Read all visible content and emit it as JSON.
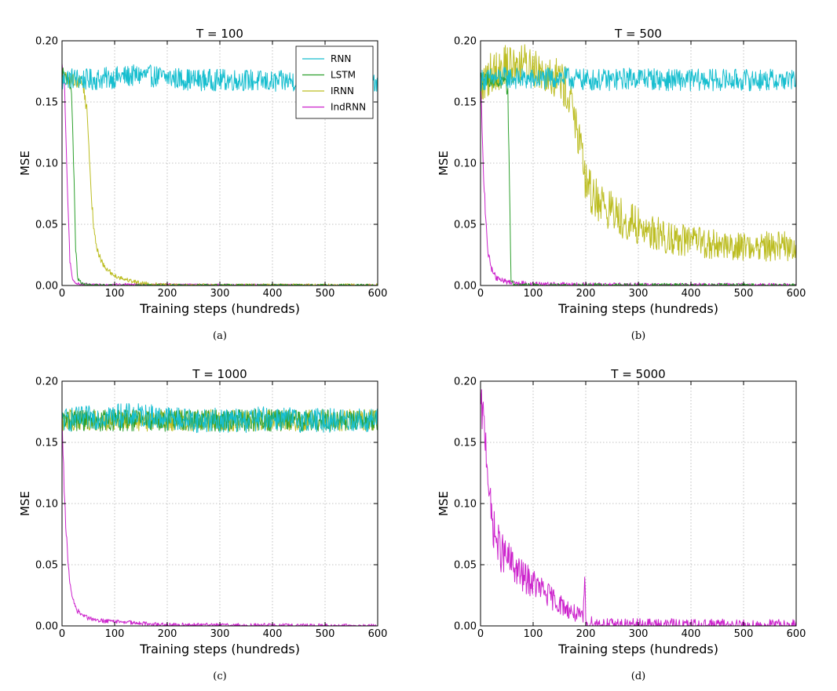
{
  "figure": {
    "colors": {
      "RNN": "#17becf",
      "LSTM": "#2ca02c",
      "IRNN": "#bcbd22",
      "IndRNN": "#cc22cc"
    },
    "legend_labels": [
      "RNN",
      "LSTM",
      "IRNN",
      "IndRNN"
    ]
  },
  "chart_data": [
    {
      "type": "line",
      "title": "T = 100",
      "caption": "(a)",
      "xlabel": "Training steps (hundreds)",
      "ylabel": "MSE",
      "xlim": [
        0,
        600
      ],
      "ylim": [
        0,
        0.2
      ],
      "xticks": [
        "0",
        "100",
        "200",
        "300",
        "400",
        "500",
        "600"
      ],
      "yticks": [
        "0.00",
        "0.05",
        "0.10",
        "0.15",
        "0.20"
      ],
      "grid": true,
      "legend": "top-right",
      "series": [
        {
          "name": "RNN",
          "x": [
            0,
            5,
            50,
            100,
            150,
            200,
            250,
            300,
            350,
            400,
            450,
            500,
            550,
            600
          ],
          "y": [
            0.165,
            0.17,
            0.168,
            0.17,
            0.172,
            0.17,
            0.168,
            0.168,
            0.168,
            0.166,
            0.168,
            0.168,
            0.168,
            0.167
          ],
          "noise": 0.009
        },
        {
          "name": "LSTM",
          "x": [
            0,
            10,
            18,
            22,
            26,
            30,
            40,
            60,
            600
          ],
          "y": [
            0.175,
            0.17,
            0.16,
            0.1,
            0.03,
            0.005,
            0.001,
            0.0,
            0.0
          ],
          "noise": 0.004
        },
        {
          "name": "IRNN",
          "x": [
            0,
            20,
            40,
            48,
            55,
            60,
            70,
            80,
            100,
            120,
            150,
            200,
            600
          ],
          "y": [
            0.17,
            0.168,
            0.165,
            0.14,
            0.08,
            0.045,
            0.025,
            0.015,
            0.008,
            0.005,
            0.002,
            0.0,
            0.0
          ],
          "noise": 0.005
        },
        {
          "name": "IndRNN",
          "x": [
            0,
            5,
            10,
            15,
            20,
            25,
            40,
            600
          ],
          "y": [
            0.18,
            0.16,
            0.08,
            0.02,
            0.005,
            0.002,
            0.001,
            0.0
          ],
          "noise": 0.003
        }
      ]
    },
    {
      "type": "line",
      "title": "T = 500",
      "caption": "(b)",
      "xlabel": "Training steps (hundreds)",
      "ylabel": "MSE",
      "xlim": [
        0,
        600
      ],
      "ylim": [
        0,
        0.2
      ],
      "xticks": [
        "0",
        "100",
        "200",
        "300",
        "400",
        "500",
        "600"
      ],
      "yticks": [
        "0.00",
        "0.05",
        "0.10",
        "0.15",
        "0.20"
      ],
      "grid": true,
      "legend": "none",
      "series": [
        {
          "name": "RNN",
          "x": [
            0,
            50,
            100,
            150,
            200,
            250,
            300,
            350,
            400,
            450,
            500,
            550,
            600
          ],
          "y": [
            0.168,
            0.17,
            0.168,
            0.17,
            0.168,
            0.168,
            0.17,
            0.168,
            0.168,
            0.168,
            0.168,
            0.168,
            0.168
          ],
          "noise": 0.009
        },
        {
          "name": "LSTM",
          "x": [
            0,
            20,
            45,
            52,
            55,
            58,
            65,
            600
          ],
          "y": [
            0.17,
            0.168,
            0.165,
            0.16,
            0.08,
            0.005,
            0.0,
            0.0
          ],
          "noise": 0.006
        },
        {
          "name": "IRNN",
          "x": [
            0,
            20,
            50,
            100,
            150,
            175,
            185,
            195,
            200,
            210,
            250,
            300,
            350,
            400,
            450,
            500,
            550,
            600
          ],
          "y": [
            0.16,
            0.175,
            0.18,
            0.18,
            0.17,
            0.15,
            0.12,
            0.1,
            0.085,
            0.075,
            0.06,
            0.048,
            0.04,
            0.036,
            0.033,
            0.032,
            0.032,
            0.032
          ],
          "noise": 0.018
        },
        {
          "name": "IndRNN",
          "x": [
            0,
            5,
            10,
            15,
            20,
            30,
            50,
            100,
            200,
            600
          ],
          "y": [
            0.17,
            0.1,
            0.05,
            0.025,
            0.015,
            0.006,
            0.003,
            0.001,
            0.0005,
            0.0
          ],
          "noise": 0.006
        }
      ]
    },
    {
      "type": "line",
      "title": "T = 1000",
      "caption": "(c)",
      "xlabel": "Training steps (hundreds)",
      "ylabel": "MSE",
      "xlim": [
        0,
        600
      ],
      "ylim": [
        0,
        0.2
      ],
      "xticks": [
        "0",
        "100",
        "200",
        "300",
        "400",
        "500",
        "600"
      ],
      "yticks": [
        "0.00",
        "0.05",
        "0.10",
        "0.15",
        "0.20"
      ],
      "grid": true,
      "legend": "none",
      "series": [
        {
          "name": "RNN",
          "x": [
            0,
            50,
            100,
            150,
            200,
            250,
            300,
            350,
            400,
            450,
            500,
            550,
            600
          ],
          "y": [
            0.168,
            0.17,
            0.172,
            0.172,
            0.17,
            0.168,
            0.168,
            0.168,
            0.17,
            0.168,
            0.168,
            0.168,
            0.168
          ],
          "noise": 0.01
        },
        {
          "name": "LSTM",
          "x": [
            0,
            100,
            200,
            300,
            400,
            500,
            600
          ],
          "y": [
            0.168,
            0.168,
            0.168,
            0.168,
            0.168,
            0.168,
            0.168
          ],
          "noise": 0.009
        },
        {
          "name": "IRNN",
          "x": [
            0,
            100,
            200,
            300,
            400,
            500,
            600
          ],
          "y": [
            0.168,
            0.168,
            0.168,
            0.168,
            0.168,
            0.168,
            0.168
          ],
          "noise": 0.009
        },
        {
          "name": "IndRNN",
          "x": [
            0,
            5,
            10,
            15,
            20,
            30,
            50,
            80,
            120,
            160,
            200,
            600
          ],
          "y": [
            0.17,
            0.1,
            0.06,
            0.035,
            0.022,
            0.012,
            0.006,
            0.004,
            0.003,
            0.002,
            0.001,
            0.0
          ],
          "noise": 0.005
        }
      ]
    },
    {
      "type": "line",
      "title": "T = 5000",
      "caption": "(d)",
      "xlabel": "Training steps (hundreds)",
      "ylabel": "MSE",
      "xlim": [
        0,
        600
      ],
      "ylim": [
        0,
        0.2
      ],
      "xticks": [
        "0",
        "100",
        "200",
        "300",
        "400",
        "500",
        "600"
      ],
      "yticks": [
        "0.00",
        "0.05",
        "0.10",
        "0.15",
        "0.20"
      ],
      "grid": true,
      "legend": "none",
      "series": [
        {
          "name": "IndRNN",
          "x": [
            0,
            5,
            10,
            15,
            20,
            30,
            40,
            60,
            80,
            100,
            120,
            150,
            180,
            195,
            198,
            200,
            220,
            250,
            300,
            600
          ],
          "y": [
            0.18,
            0.17,
            0.15,
            0.12,
            0.09,
            0.07,
            0.06,
            0.05,
            0.04,
            0.035,
            0.028,
            0.018,
            0.01,
            0.006,
            0.04,
            0.003,
            0.002,
            0.001,
            0.0008,
            0.0003
          ],
          "noise": 0.017
        }
      ]
    }
  ]
}
